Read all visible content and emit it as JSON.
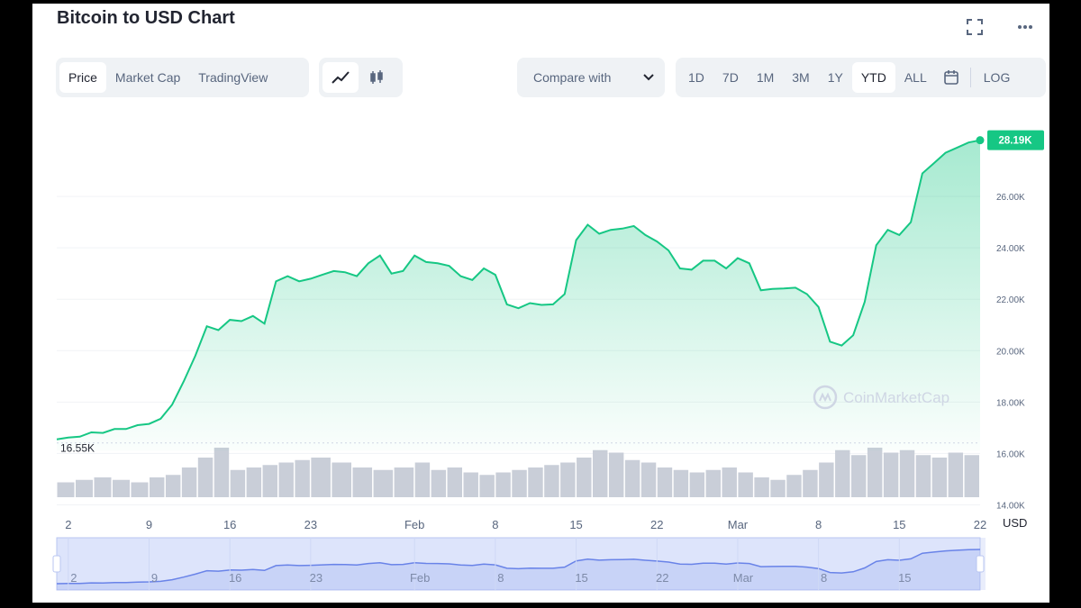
{
  "title": "Bitcoin to USD Chart",
  "view_tabs": [
    {
      "label": "Price",
      "active": true
    },
    {
      "label": "Market Cap",
      "active": false
    },
    {
      "label": "TradingView",
      "active": false
    }
  ],
  "chart_style_buttons": [
    {
      "icon": "line-chart-icon",
      "active": true
    },
    {
      "icon": "candlestick-icon",
      "active": false
    }
  ],
  "compare_label": "Compare with",
  "range_buttons": [
    {
      "label": "1D",
      "active": false
    },
    {
      "label": "7D",
      "active": false
    },
    {
      "label": "1M",
      "active": false
    },
    {
      "label": "3M",
      "active": false
    },
    {
      "label": "1Y",
      "active": false
    },
    {
      "label": "YTD",
      "active": true
    },
    {
      "label": "ALL",
      "active": false
    }
  ],
  "log_label": "LOG",
  "colors": {
    "accent": "#16c784",
    "navigator": "#6983e8"
  },
  "chart_data": {
    "type": "area",
    "title": "",
    "xlabel": "",
    "ylabel": "",
    "currency_label": "USD",
    "watermark": "CoinMarketCap",
    "start_label": "16.55K",
    "last_label": "28.19K",
    "y_ticks": [
      "14.00K",
      "16.00K",
      "18.00K",
      "20.00K",
      "22.00K",
      "24.00K",
      "26.00K"
    ],
    "y_tick_values": [
      14000,
      16000,
      18000,
      20000,
      22000,
      24000,
      26000
    ],
    "ylim": [
      13700,
      29300
    ],
    "x_ticks": [
      "2",
      "9",
      "16",
      "23",
      "Feb",
      "8",
      "15",
      "22",
      "Mar",
      "8",
      "15",
      "22"
    ],
    "x_tick_values": [
      "2023-01-02",
      "2023-01-09",
      "2023-01-16",
      "2023-01-23",
      "2023-02-01",
      "2023-02-08",
      "2023-02-15",
      "2023-02-22",
      "2023-03-01",
      "2023-03-08",
      "2023-03-15",
      "2023-03-22"
    ],
    "navigator_ticks": [
      "2",
      "9",
      "16",
      "23",
      "Feb",
      "8",
      "15",
      "22",
      "Mar",
      "8",
      "15"
    ],
    "navigator_tick_values": [
      "2023-01-02",
      "2023-01-09",
      "2023-01-16",
      "2023-01-23",
      "2023-02-01",
      "2023-02-08",
      "2023-02-15",
      "2023-02-22",
      "2023-03-01",
      "2023-03-08",
      "2023-03-15"
    ],
    "grid": true,
    "series": [
      {
        "dates": [
          "2023-01-01",
          "2023-01-02",
          "2023-01-03",
          "2023-01-04",
          "2023-01-05",
          "2023-01-06",
          "2023-01-07",
          "2023-01-08",
          "2023-01-09",
          "2023-01-10",
          "2023-01-11",
          "2023-01-12",
          "2023-01-13",
          "2023-01-14",
          "2023-01-15",
          "2023-01-16",
          "2023-01-17",
          "2023-01-18",
          "2023-01-19",
          "2023-01-20",
          "2023-01-21",
          "2023-01-22",
          "2023-01-23",
          "2023-01-24",
          "2023-01-25",
          "2023-01-26",
          "2023-01-27",
          "2023-01-28",
          "2023-01-29",
          "2023-01-30",
          "2023-01-31",
          "2023-02-01",
          "2023-02-02",
          "2023-02-03",
          "2023-02-04",
          "2023-02-05",
          "2023-02-06",
          "2023-02-07",
          "2023-02-08",
          "2023-02-09",
          "2023-02-10",
          "2023-02-11",
          "2023-02-12",
          "2023-02-13",
          "2023-02-14",
          "2023-02-15",
          "2023-02-16",
          "2023-02-17",
          "2023-02-18",
          "2023-02-19",
          "2023-02-20",
          "2023-02-21",
          "2023-02-22",
          "2023-02-23",
          "2023-02-24",
          "2023-02-25",
          "2023-02-26",
          "2023-02-27",
          "2023-02-28",
          "2023-03-01",
          "2023-03-02",
          "2023-03-03",
          "2023-03-04",
          "2023-03-05",
          "2023-03-06",
          "2023-03-07",
          "2023-03-08",
          "2023-03-09",
          "2023-03-10",
          "2023-03-11",
          "2023-03-12",
          "2023-03-13",
          "2023-03-14",
          "2023-03-15",
          "2023-03-16",
          "2023-03-17",
          "2023-03-18",
          "2023-03-19",
          "2023-03-20",
          "2023-03-21",
          "2023-03-22"
        ],
        "values": [
          16550,
          16620,
          16650,
          16820,
          16800,
          16950,
          16950,
          17100,
          17150,
          17350,
          17900,
          18800,
          19800,
          20950,
          20800,
          21200,
          21150,
          21350,
          21050,
          22700,
          22900,
          22700,
          22800,
          22950,
          23100,
          23050,
          22900,
          23400,
          23700,
          23000,
          23100,
          23700,
          23450,
          23400,
          23300,
          22900,
          22750,
          23200,
          22950,
          21800,
          21650,
          21850,
          21780,
          21800,
          22200,
          24300,
          24900,
          24550,
          24700,
          24750,
          24850,
          24500,
          24250,
          23900,
          23200,
          23150,
          23500,
          23500,
          23200,
          23600,
          23400,
          22350,
          22400,
          22420,
          22450,
          22200,
          21700,
          20350,
          20200,
          20600,
          21900,
          24100,
          24700,
          24500,
          25000,
          26900,
          27300,
          27700,
          27900,
          28100,
          28190
        ]
      }
    ],
    "volume": [
      {
        "start": "2023-01-01",
        "end": "2023-01-09",
        "levels": [
          0.3,
          0.35,
          0.4,
          0.35,
          0.3
        ]
      },
      {
        "start": "2023-01-09",
        "end": "2023-01-16",
        "levels": [
          0.4,
          0.45,
          0.6,
          0.8,
          1.0
        ]
      },
      {
        "start": "2023-01-16",
        "end": "2023-01-23",
        "levels": [
          0.55,
          0.6,
          0.65,
          0.7,
          0.75
        ]
      },
      {
        "start": "2023-01-23",
        "end": "2023-02-01",
        "levels": [
          0.8,
          0.7,
          0.6,
          0.55,
          0.6
        ]
      },
      {
        "start": "2023-02-01",
        "end": "2023-02-08",
        "levels": [
          0.7,
          0.55,
          0.6,
          0.5,
          0.45
        ]
      },
      {
        "start": "2023-02-08",
        "end": "2023-02-15",
        "levels": [
          0.5,
          0.55,
          0.6,
          0.65,
          0.7
        ]
      },
      {
        "start": "2023-02-15",
        "end": "2023-02-22",
        "levels": [
          0.8,
          0.95,
          0.9,
          0.75,
          0.7
        ]
      },
      {
        "start": "2023-02-22",
        "end": "2023-03-01",
        "levels": [
          0.6,
          0.55,
          0.5,
          0.55,
          0.6
        ]
      },
      {
        "start": "2023-03-01",
        "end": "2023-03-08",
        "levels": [
          0.5,
          0.4,
          0.35,
          0.45,
          0.55
        ]
      },
      {
        "start": "2023-03-08",
        "end": "2023-03-15",
        "levels": [
          0.7,
          0.95,
          0.85,
          1.0,
          0.9
        ]
      },
      {
        "start": "2023-03-15",
        "end": "2023-03-22",
        "levels": [
          0.95,
          0.85,
          0.8,
          0.9,
          0.85
        ]
      }
    ],
    "navigator_selection": [
      "2023-01-01",
      "2023-03-22"
    ],
    "legend": "none"
  }
}
